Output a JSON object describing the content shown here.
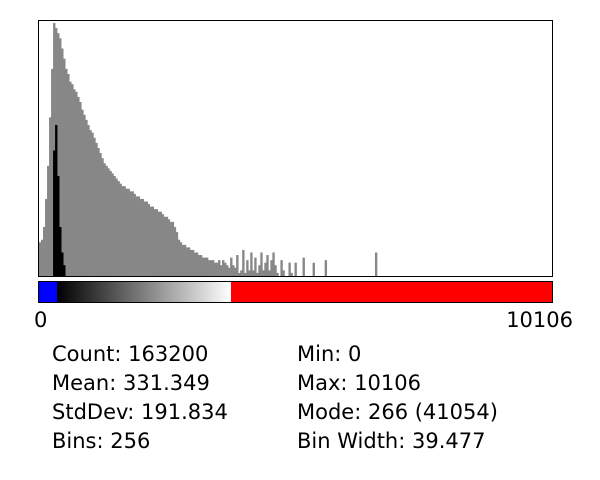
{
  "colors": {
    "background": "#ffffff",
    "histogram_fill": "#878787",
    "histogram_overlay": "#000000",
    "lut_low": "#0000ff",
    "lut_high": "#ff0000",
    "frame": "#000000"
  },
  "histogram": {
    "x_min_label": "0",
    "x_max_label": "10106",
    "lut": {
      "low_color": "#0000ff",
      "gradient_from": "#000000",
      "gradient_to": "#ffffff",
      "high_color": "#ff0000"
    }
  },
  "chart_data": {
    "type": "bar",
    "x_range": [
      0,
      10106
    ],
    "bins": 256,
    "main_series": [
      0.14,
      0.15,
      0.2,
      0.31,
      0.44,
      0.63,
      0.82,
      1.0,
      0.98,
      0.96,
      0.94,
      0.9,
      0.86,
      0.82,
      0.8,
      0.77,
      0.76,
      0.74,
      0.73,
      0.71,
      0.69,
      0.66,
      0.64,
      0.62,
      0.6,
      0.58,
      0.57,
      0.55,
      0.53,
      0.51,
      0.49,
      0.47,
      0.45,
      0.44,
      0.43,
      0.42,
      0.41,
      0.4,
      0.39,
      0.38,
      0.37,
      0.36,
      0.36,
      0.35,
      0.35,
      0.34,
      0.34,
      0.33,
      0.32,
      0.32,
      0.31,
      0.31,
      0.3,
      0.3,
      0.29,
      0.28,
      0.28,
      0.27,
      0.27,
      0.26,
      0.26,
      0.25,
      0.24,
      0.24,
      0.23,
      0.22,
      0.22,
      0.2,
      0.18,
      0.15,
      0.14,
      0.13,
      0.13,
      0.12,
      0.12,
      0.11,
      0.11,
      0.1,
      0.1,
      0.09,
      0.09,
      0.08,
      0.08,
      0.08,
      0.07,
      0.07,
      0.07,
      0.06,
      0.06,
      0.07,
      0.05,
      0.07,
      0.06,
      0.05,
      0.04,
      0.08,
      0.05,
      0.04,
      0.09,
      0.02,
      0.03,
      0.11,
      0.02,
      0.07,
      0.03,
      0.1,
      0.03,
      0.08,
      0.02,
      0.05,
      0.1,
      0.03,
      0.06,
      0.09,
      0.03,
      0.07,
      0.1,
      0.05,
      0.02,
      0.0,
      0.07,
      0.03,
      0.0,
      0.0,
      0.06,
      0.02,
      0.0,
      0.06,
      0.0,
      0.0,
      0.0,
      0.08,
      0.0,
      0.0,
      0.0,
      0.0,
      0.06,
      0.0,
      0.0,
      0.0,
      0.0,
      0.0,
      0.07,
      0.0,
      0.0,
      0.0,
      0.0,
      0.0,
      0.0,
      0.0,
      0.0,
      0.0,
      0.0,
      0.0,
      0.0,
      0.0,
      0.0,
      0.0,
      0.0,
      0.0,
      0.0,
      0.0,
      0.0,
      0.0,
      0.0,
      0.0,
      0.0,
      0.1,
      0.0,
      0.0,
      0.0,
      0.0,
      0.0,
      0.0,
      0.0,
      0.0,
      0.0,
      0.0,
      0.0,
      0.0,
      0.0,
      0.0,
      0.0,
      0.0,
      0.0,
      0.0,
      0.0,
      0.0,
      0.0,
      0.0,
      0.0,
      0.0,
      0.0,
      0.0,
      0.0,
      0.0,
      0.0,
      0.0,
      0.0,
      0.0,
      0.0,
      0.0,
      0.0,
      0.0,
      0.0,
      0.0,
      0.0,
      0.0,
      0.0,
      0.0,
      0.0,
      0.0,
      0.0,
      0.0,
      0.0,
      0.0,
      0.0,
      0.0,
      0.0,
      0.0,
      0.0,
      0.0,
      0.0,
      0.0,
      0.0,
      0.0,
      0.0,
      0.0,
      0.0,
      0.0,
      0.0,
      0.0,
      0.0,
      0.0,
      0.0,
      0.0,
      0.0,
      0.0,
      0.0,
      0.0,
      0.0,
      0.0,
      0.0,
      0.0,
      0.0,
      0.0,
      0.0,
      0.0,
      0.0,
      0.0,
      0.0,
      0.0,
      0.0,
      0.0,
      0.0,
      0.0
    ],
    "overlay_series": [
      0.0,
      0.0,
      0.0,
      0.0,
      0.0,
      0.0,
      0.0,
      0.5,
      0.6,
      0.4,
      0.2,
      0.1,
      0.05,
      0.0,
      0.0,
      0.0
    ]
  },
  "stats": {
    "count": {
      "label": "Count:",
      "value": "163200"
    },
    "mean": {
      "label": "Mean:",
      "value": "331.349"
    },
    "stddev": {
      "label": "StdDev:",
      "value": "191.834"
    },
    "bins": {
      "label": "Bins:",
      "value": "256"
    },
    "min": {
      "label": "Min:",
      "value": "0"
    },
    "max": {
      "label": "Max:",
      "value": "10106"
    },
    "mode": {
      "label": "Mode:",
      "value": "266 (41054)"
    },
    "bin_width": {
      "label": "Bin Width:",
      "value": "39.477"
    }
  }
}
